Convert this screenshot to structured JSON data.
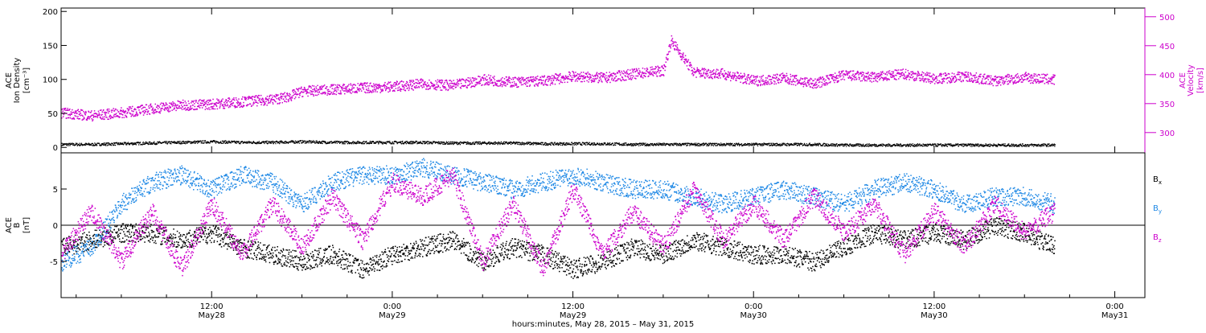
{
  "footer_label": "hours:minutes, May 28, 2015 – May 31, 2015",
  "time_ticks": [
    {
      "hour": 12,
      "time": "12:00",
      "date": "May28"
    },
    {
      "hour": 24,
      "time": "0:00",
      "date": "May29"
    },
    {
      "hour": 36,
      "time": "12:00",
      "date": "May29"
    },
    {
      "hour": 48,
      "time": "0:00",
      "date": "May30"
    },
    {
      "hour": 60,
      "time": "12:00",
      "date": "May30"
    },
    {
      "hour": 72,
      "time": "0:00",
      "date": "May31"
    }
  ],
  "chart_data": [
    {
      "type": "scatter",
      "panel": "plasma",
      "x_range_hours": [
        2,
        74
      ],
      "ylabel_left": [
        "ACE",
        "Ion Density",
        "[cm⁻³]"
      ],
      "ylabel_right": [
        "ACE",
        "Velocity",
        "[km/s]"
      ],
      "ylim_left": [
        -8,
        205
      ],
      "ylim_right": [
        265,
        515
      ],
      "yticks_left": [
        0,
        50,
        100,
        150,
        200
      ],
      "yticks_right": [
        300,
        350,
        400,
        450,
        500
      ],
      "series": [
        {
          "axis": "left",
          "color": "#000000",
          "hours": [
            2,
            4,
            6,
            8,
            10,
            12,
            14,
            16,
            18,
            20,
            22,
            24,
            26,
            28,
            30,
            32,
            34,
            36,
            38,
            40,
            42,
            44,
            46,
            48,
            50,
            52,
            54,
            56,
            58,
            60,
            62,
            64,
            66,
            68
          ],
          "values": [
            5,
            5,
            6,
            7,
            8,
            9,
            8,
            8,
            9,
            8,
            8,
            8,
            8,
            7,
            7,
            7,
            6,
            6,
            6,
            5,
            5,
            5,
            5,
            5,
            5,
            5,
            4,
            4,
            4,
            4,
            4,
            4,
            4,
            4
          ]
        },
        {
          "axis": "right",
          "color": "#cc00cc",
          "hours": [
            2,
            4,
            6,
            8,
            10,
            12,
            14,
            16,
            17,
            18,
            20,
            22,
            24,
            26,
            28,
            30,
            32,
            34,
            36,
            38,
            40,
            42,
            42.5,
            44,
            46,
            48,
            50,
            52,
            54,
            56,
            58,
            60,
            62,
            64,
            66,
            68
          ],
          "values": [
            335,
            330,
            335,
            342,
            348,
            350,
            354,
            358,
            362,
            372,
            375,
            378,
            380,
            385,
            382,
            392,
            388,
            390,
            398,
            395,
            402,
            408,
            460,
            405,
            402,
            390,
            395,
            385,
            400,
            396,
            402,
            394,
            398,
            390,
            396,
            392
          ]
        }
      ]
    },
    {
      "type": "scatter",
      "panel": "magnetic-field",
      "x_range_hours": [
        2,
        74
      ],
      "ylabel_left": [
        "ACE",
        "B",
        "[nT]"
      ],
      "ylim": [
        -10,
        10
      ],
      "yticks": [
        -5,
        0,
        5
      ],
      "legend": [
        "Bx",
        "By",
        "Bz"
      ],
      "series": [
        {
          "name": "Bx",
          "color": "#000000",
          "hours": [
            2,
            4,
            6,
            8,
            10,
            12,
            14,
            16,
            18,
            20,
            22,
            24,
            26,
            28,
            30,
            32,
            34,
            36,
            38,
            40,
            42,
            44,
            46,
            48,
            50,
            52,
            54,
            56,
            58,
            60,
            62,
            64,
            66,
            68
          ],
          "values": [
            -3,
            -2,
            -1,
            -1,
            -2,
            -1,
            -3,
            -4,
            -5,
            -4,
            -6,
            -4,
            -3,
            -2,
            -5,
            -3,
            -4,
            -6,
            -5,
            -3,
            -4,
            -2,
            -3,
            -4,
            -4,
            -5,
            -3,
            -1,
            -2,
            -1,
            -2,
            0,
            -1,
            -3
          ]
        },
        {
          "name": "By",
          "color": "#1e88e5",
          "hours": [
            2,
            4,
            6,
            8,
            10,
            12,
            14,
            16,
            18,
            20,
            22,
            24,
            26,
            28,
            30,
            32,
            34,
            36,
            38,
            40,
            42,
            44,
            46,
            48,
            50,
            52,
            54,
            56,
            58,
            60,
            62,
            64,
            66,
            68
          ],
          "values": [
            -5,
            -3,
            3,
            6,
            7,
            5,
            7,
            6,
            3,
            6,
            7,
            7,
            8,
            7,
            6,
            5,
            6,
            7,
            6,
            5,
            5,
            4,
            3,
            4,
            5,
            4,
            3,
            5,
            6,
            5,
            3,
            4,
            4,
            3
          ]
        },
        {
          "name": "Bz",
          "color": "#cc00cc",
          "hours": [
            2,
            4,
            6,
            8,
            10,
            12,
            14,
            16,
            18,
            20,
            22,
            24,
            26,
            28,
            30,
            32,
            34,
            36,
            38,
            40,
            42,
            44,
            46,
            48,
            50,
            52,
            54,
            56,
            58,
            60,
            62,
            64,
            66,
            68
          ],
          "values": [
            -4,
            2,
            -5,
            2,
            -6,
            3,
            -4,
            3,
            -3,
            4,
            -2,
            6,
            4,
            7,
            -5,
            3,
            -6,
            5,
            -4,
            2,
            -3,
            5,
            -2,
            3,
            -2,
            4,
            -1,
            3,
            -4,
            2,
            -3,
            3,
            -1,
            2
          ]
        }
      ]
    }
  ]
}
